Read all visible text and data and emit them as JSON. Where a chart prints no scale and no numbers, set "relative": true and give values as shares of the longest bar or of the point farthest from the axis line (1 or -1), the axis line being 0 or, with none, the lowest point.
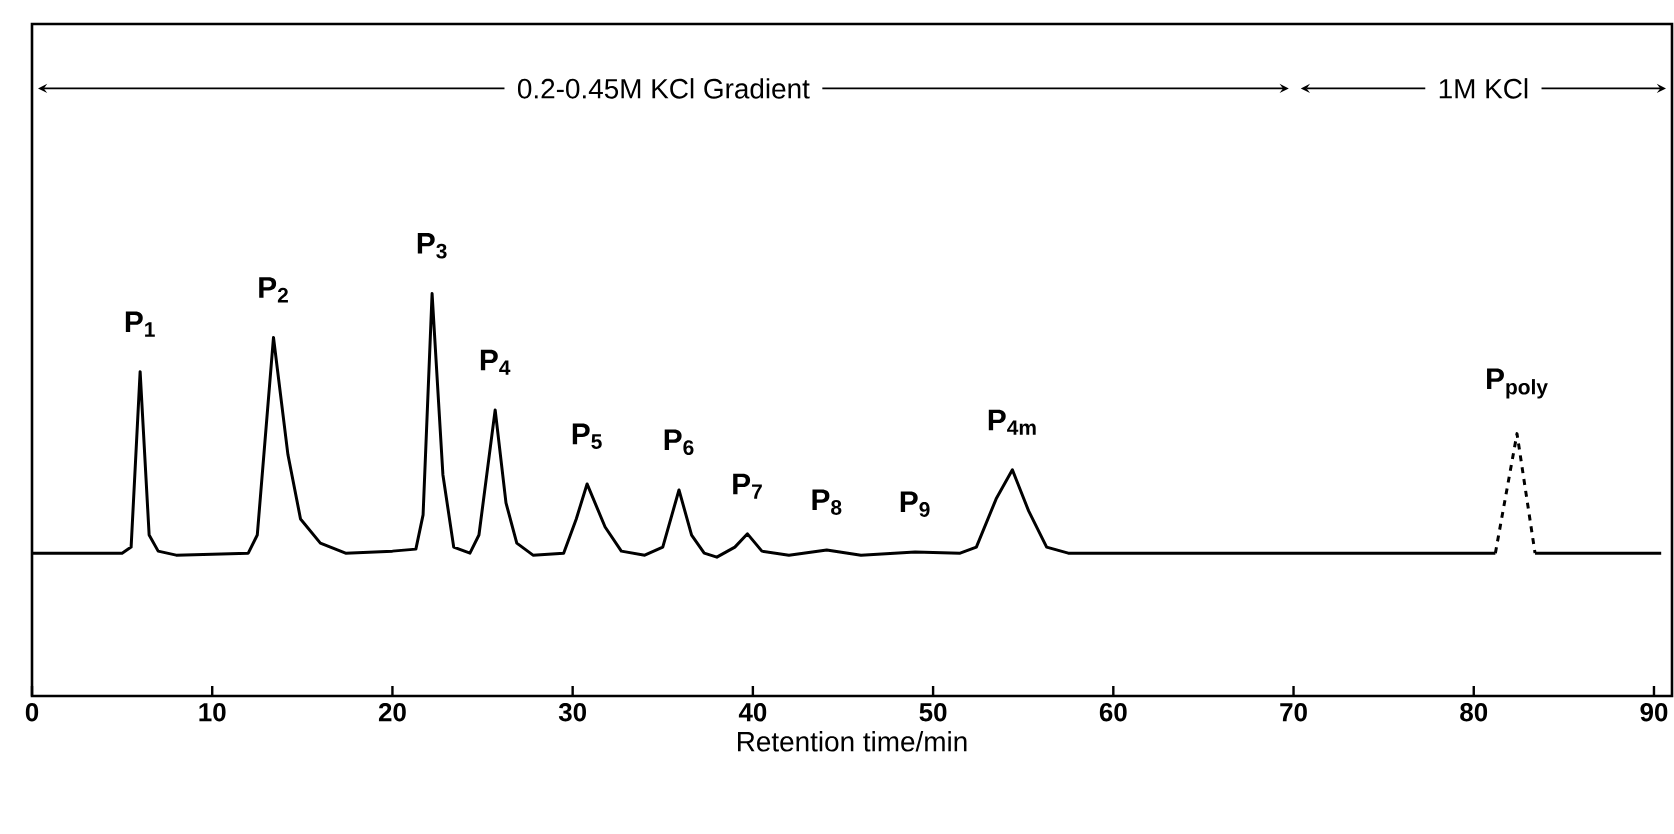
{
  "chart_data": {
    "type": "line",
    "xlabel": "Retention time/min",
    "relative": true,
    "xlim": [
      0,
      91
    ],
    "xticks": [
      0,
      10,
      20,
      30,
      40,
      50,
      60,
      70,
      80,
      90
    ],
    "series": [
      {
        "color": "#000000",
        "line_style": "solid",
        "x": [
          0,
          5.0,
          5.5,
          6.0,
          6.5,
          7.0,
          8,
          12.0,
          12.5,
          13.4,
          14.2,
          14.9,
          16,
          17.4,
          20,
          21.3,
          21.7,
          22.2,
          22.8,
          23.4,
          24.3,
          24.8,
          25.7,
          26.3,
          26.9,
          27.8,
          29.5,
          30.2,
          30.8,
          31.8,
          32.7,
          34,
          35.0,
          35.9,
          36.6,
          37.3,
          38,
          39.0,
          39.7,
          40.5,
          42,
          44.1,
          46,
          49.0,
          51.5,
          52.4,
          53.5,
          54.4,
          55.3,
          56.3,
          57.5,
          81.2
        ],
        "values": [
          0.355,
          0.355,
          0.37,
          0.806,
          0.4,
          0.36,
          0.35,
          0.355,
          0.4,
          0.891,
          0.6,
          0.44,
          0.38,
          0.355,
          0.36,
          0.365,
          0.45,
          1.0,
          0.55,
          0.37,
          0.355,
          0.4,
          0.711,
          0.48,
          0.38,
          0.35,
          0.355,
          0.44,
          0.527,
          0.42,
          0.36,
          0.35,
          0.37,
          0.512,
          0.4,
          0.355,
          0.345,
          0.37,
          0.403,
          0.36,
          0.35,
          0.363,
          0.35,
          0.358,
          0.355,
          0.37,
          0.49,
          0.562,
          0.46,
          0.37,
          0.355,
          0.355
        ]
      },
      {
        "color": "#000000",
        "line_style": "dashed",
        "x": [
          81.2,
          82.4,
          83.4
        ],
        "values": [
          0.355,
          0.652,
          0.355
        ]
      },
      {
        "color": "#000000",
        "line_style": "solid",
        "x": [
          83.4,
          90.4
        ],
        "values": [
          0.355,
          0.355
        ]
      }
    ],
    "annotations": [
      "0.2-0.45M KCl Gradient",
      "1M KCl",
      {
        "text": "P$_{1}$",
        "x": 6.0,
        "y": 0.806
      },
      {
        "text": "P$_{2}$",
        "x": 13.4,
        "y": 0.891
      },
      {
        "text": "P$_{3}$",
        "x": 22.2,
        "y": 1.0
      },
      {
        "text": "P$_{4}$",
        "x": 25.7,
        "y": 0.711
      },
      {
        "text": "P$_{5}$",
        "x": 30.8,
        "y": 0.527
      },
      {
        "text": "P$_{6}$",
        "x": 35.9,
        "y": 0.512
      },
      {
        "text": "P$_{7}$",
        "x": 39.7,
        "y": 0.403
      },
      {
        "text": "P$_{8}$",
        "x": 44.1,
        "y": 0.363
      },
      {
        "text": "P$_{9}$",
        "x": 49.0,
        "y": 0.358
      },
      {
        "text": "P$_{4m}$",
        "x": 54.4,
        "y": 0.562
      },
      {
        "text": "P$_{poly}$",
        "x": 82.4,
        "y": 0.652
      }
    ]
  }
}
